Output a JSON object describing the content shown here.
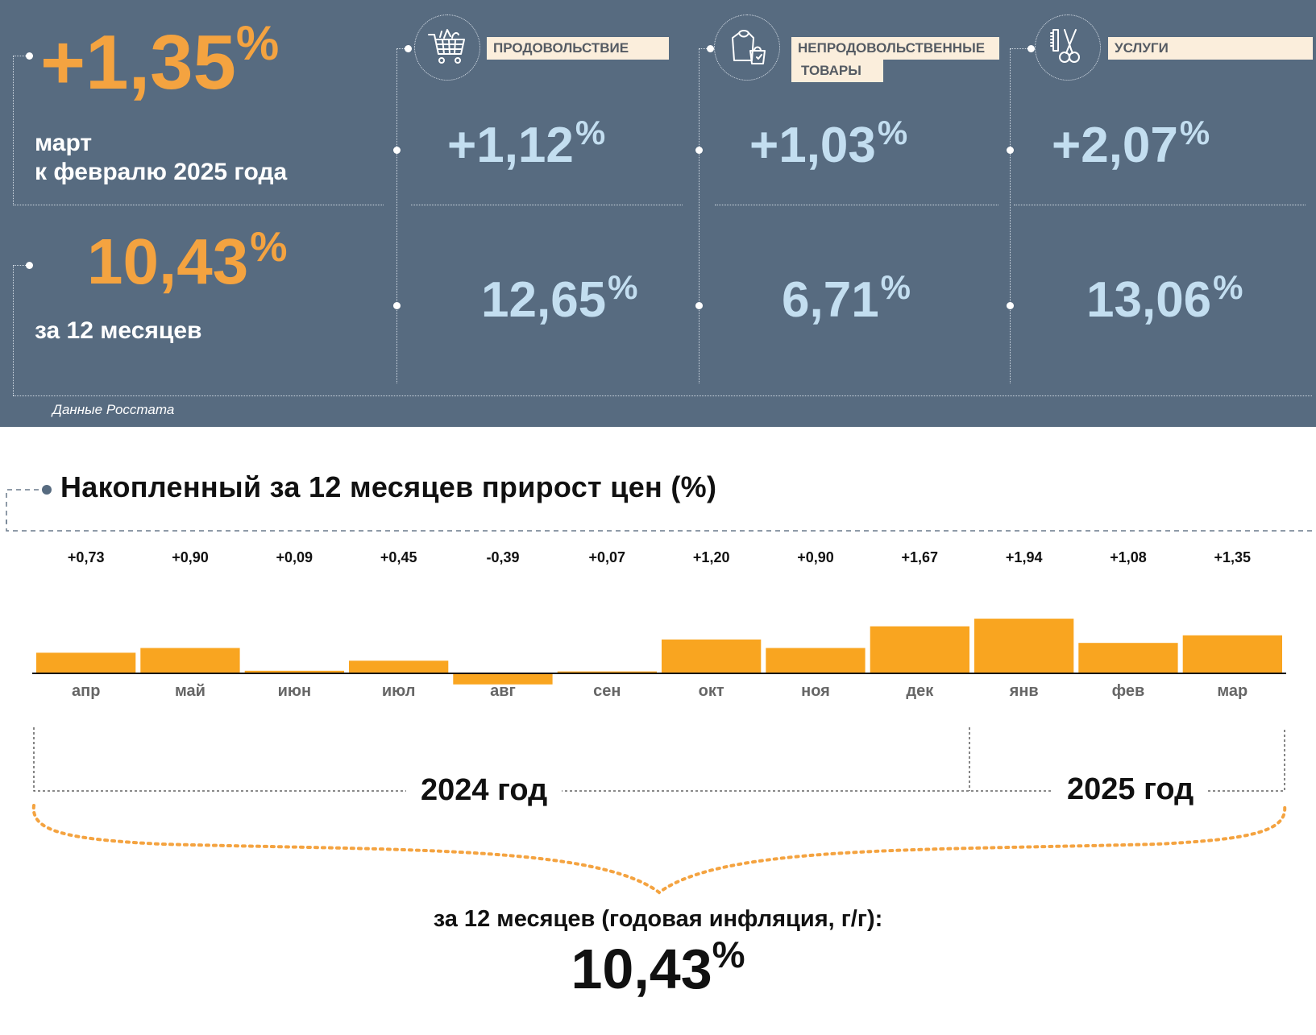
{
  "monthly": {
    "value": "+1,35",
    "unit": "%",
    "caption_line1": "март",
    "caption_line2": "к февралю 2025 года"
  },
  "yearly": {
    "value": "10,43",
    "unit": "%",
    "caption": "за 12 месяцев"
  },
  "categories": [
    {
      "label": "ПРОДОВОЛЬСТВИЕ",
      "icon": "shopping-cart-icon",
      "monthly": "+1,12",
      "yearly": "12,65",
      "unit": "%"
    },
    {
      "label_line1": "НЕПРОДОВОЛЬСТВЕННЫЕ",
      "label_line2": "ТОВАРЫ",
      "icon": "clothes-bag-icon",
      "monthly": "+1,03",
      "yearly": "6,71",
      "unit": "%"
    },
    {
      "label": "УСЛУГИ",
      "icon": "scissors-comb-icon",
      "monthly": "+2,07",
      "yearly": "13,06",
      "unit": "%"
    }
  ],
  "source": "Данные Росстата",
  "colors": {
    "panel": "#576b80",
    "accent_orange": "#f4a340",
    "bar": "#f9a520",
    "value_blue": "#c3def0",
    "label_bg": "#fbeedc"
  },
  "chart_data": {
    "type": "bar",
    "title": "Накопленный за 12 месяцев прирост цен (%)",
    "categories": [
      "апр",
      "май",
      "июн",
      "июл",
      "авг",
      "сен",
      "окт",
      "ноя",
      "дек",
      "янв",
      "фев",
      "мар"
    ],
    "values": [
      0.73,
      0.9,
      0.09,
      0.45,
      -0.39,
      0.07,
      1.2,
      0.9,
      1.67,
      1.94,
      1.08,
      1.35
    ],
    "value_labels": [
      "+0,73",
      "+0,90",
      "+0,09",
      "+0,45",
      "-0,39",
      "+0,07",
      "+1,20",
      "+0,90",
      "+1,67",
      "+1,94",
      "+1,08",
      "+1,35"
    ],
    "groups": [
      {
        "label": "2024 год",
        "from": 0,
        "to": 8
      },
      {
        "label": "2025 год",
        "from": 9,
        "to": 11
      }
    ],
    "summary_text": "за 12 месяцев (годовая инфляция, г/г):",
    "summary_value": "10,43",
    "summary_unit": "%",
    "grid": false,
    "legend": "none"
  }
}
